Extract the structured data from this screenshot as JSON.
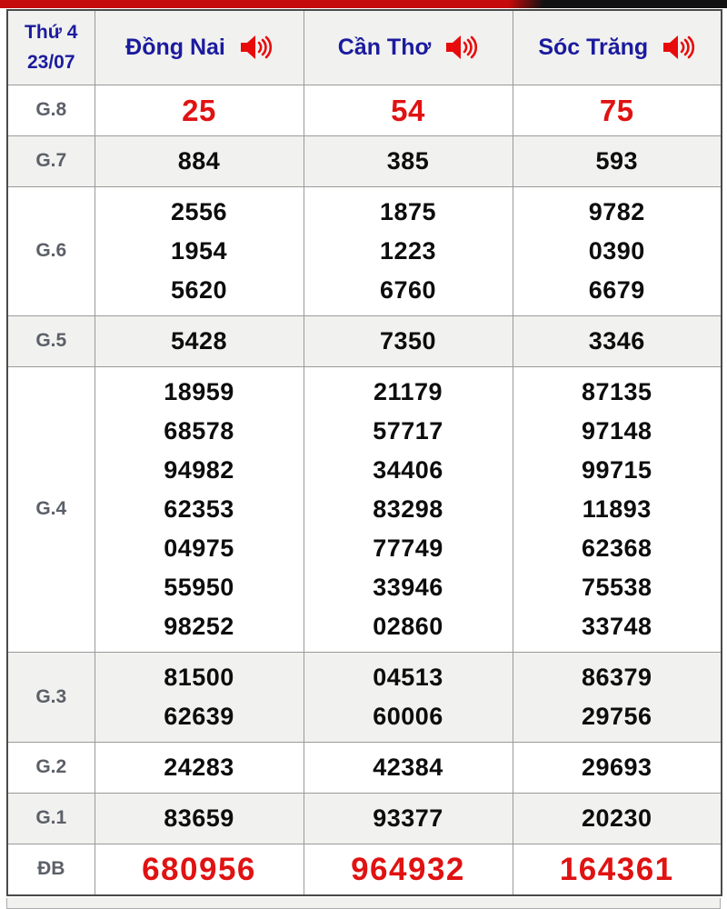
{
  "colors": {
    "accent_red": "#e01212",
    "header_blue": "#1b1b9e",
    "label_gray": "#5b6068",
    "row_shade": "#f1f1ef",
    "topbar_red": "#c50b0b",
    "topbar_black": "#121212"
  },
  "table": {
    "header": {
      "weekday": "Thứ 4",
      "date": "23/07",
      "columns": [
        {
          "label": "Đồng Nai",
          "icon": "speaker-icon"
        },
        {
          "label": "Cần Thơ",
          "icon": "speaker-icon"
        },
        {
          "label": "Sóc Trăng",
          "icon": "speaker-icon"
        }
      ]
    },
    "rows": [
      {
        "label": "G.8",
        "emphasis": "red",
        "values": [
          [
            "25"
          ],
          [
            "54"
          ],
          [
            "75"
          ]
        ]
      },
      {
        "label": "G.7",
        "emphasis": "none",
        "values": [
          [
            "884"
          ],
          [
            "385"
          ],
          [
            "593"
          ]
        ]
      },
      {
        "label": "G.6",
        "emphasis": "none",
        "values": [
          [
            "2556",
            "1954",
            "5620"
          ],
          [
            "1875",
            "1223",
            "6760"
          ],
          [
            "9782",
            "0390",
            "6679"
          ]
        ]
      },
      {
        "label": "G.5",
        "emphasis": "none",
        "values": [
          [
            "5428"
          ],
          [
            "7350"
          ],
          [
            "3346"
          ]
        ]
      },
      {
        "label": "G.4",
        "emphasis": "none",
        "values": [
          [
            "18959",
            "68578",
            "94982",
            "62353",
            "04975",
            "55950",
            "98252"
          ],
          [
            "21179",
            "57717",
            "34406",
            "83298",
            "77749",
            "33946",
            "02860"
          ],
          [
            "87135",
            "97148",
            "99715",
            "11893",
            "62368",
            "75538",
            "33748"
          ]
        ]
      },
      {
        "label": "G.3",
        "emphasis": "none",
        "values": [
          [
            "81500",
            "62639"
          ],
          [
            "04513",
            "60006"
          ],
          [
            "86379",
            "29756"
          ]
        ]
      },
      {
        "label": "G.2",
        "emphasis": "none",
        "values": [
          [
            "24283"
          ],
          [
            "42384"
          ],
          [
            "29693"
          ]
        ]
      },
      {
        "label": "G.1",
        "emphasis": "none",
        "values": [
          [
            "83659"
          ],
          [
            "93377"
          ],
          [
            "20230"
          ]
        ]
      },
      {
        "label": "ĐB",
        "emphasis": "red-large",
        "values": [
          [
            "680956"
          ],
          [
            "964932"
          ],
          [
            "164361"
          ]
        ]
      }
    ]
  }
}
